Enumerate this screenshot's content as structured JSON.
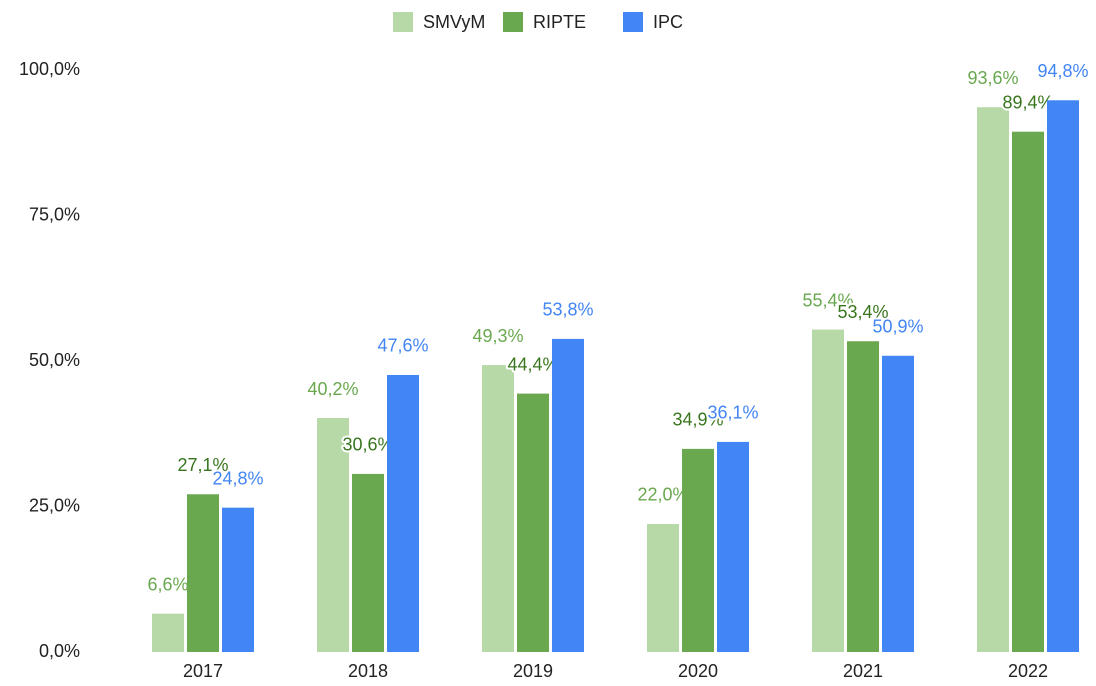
{
  "chart_data": {
    "type": "bar",
    "categories": [
      "2017",
      "2018",
      "2019",
      "2020",
      "2021",
      "2022"
    ],
    "series": [
      {
        "name": "SMVyM",
        "color": "#b7d9a8",
        "label_color": "#6aa84f",
        "values": [
          6.6,
          40.2,
          49.3,
          22.0,
          55.4,
          93.6
        ],
        "value_labels": [
          "6,6%",
          "40,2%",
          "49,3%",
          "22,0%",
          "55,4%",
          "93,6%"
        ]
      },
      {
        "name": "RIPTE",
        "color": "#6aa84f",
        "label_color": "#38761d",
        "values": [
          27.1,
          30.6,
          44.4,
          34.9,
          53.4,
          89.4
        ],
        "value_labels": [
          "27,1%",
          "30,6%",
          "44,4%",
          "34,9%",
          "53,4%",
          "89,4%"
        ]
      },
      {
        "name": "IPC",
        "color": "#4285f4",
        "label_color": "#4285f4",
        "values": [
          24.8,
          47.6,
          53.8,
          36.1,
          50.9,
          94.8
        ],
        "value_labels": [
          "24,8%",
          "47,6%",
          "53,8%",
          "36,1%",
          "50,9%",
          "94,8%"
        ]
      }
    ],
    "ylim": [
      0,
      100
    ],
    "yticks": [
      {
        "value": 0,
        "label": "0,0%"
      },
      {
        "value": 25,
        "label": "25,0%"
      },
      {
        "value": 50,
        "label": "50,0%"
      },
      {
        "value": 75,
        "label": "75,0%"
      },
      {
        "value": 100,
        "label": "100,0%"
      }
    ],
    "legend": "top"
  }
}
